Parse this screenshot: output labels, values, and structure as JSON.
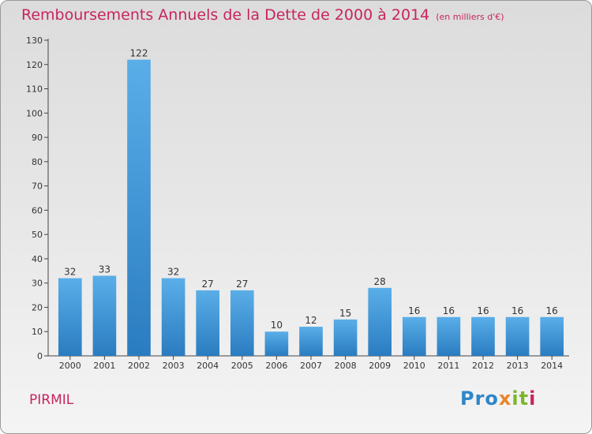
{
  "title": "Remboursements Annuels de la Dette de 2000 à 2014",
  "unit": "(en milliers d'€)",
  "town": "PIRMIL",
  "logo": {
    "p1": "Pro",
    "p2": "x",
    "p3": "it",
    "p4": "i"
  },
  "colors": {
    "title": "#c8245f",
    "bar_top": "#5aaee8",
    "bar_bottom": "#2a7cc0"
  },
  "chart_data": {
    "type": "bar",
    "title": "Remboursements Annuels de la Dette de 2000 à 2014",
    "xlabel": "",
    "ylabel": "",
    "categories": [
      "2000",
      "2001",
      "2002",
      "2003",
      "2004",
      "2005",
      "2006",
      "2007",
      "2008",
      "2009",
      "2010",
      "2011",
      "2012",
      "2013",
      "2014"
    ],
    "values": [
      32,
      33,
      122,
      32,
      27,
      27,
      10,
      12,
      15,
      28,
      16,
      16,
      16,
      16,
      16
    ],
    "ylim": [
      0,
      130
    ],
    "yticks": [
      0,
      10,
      20,
      30,
      40,
      50,
      60,
      70,
      80,
      90,
      100,
      110,
      120,
      130
    ],
    "grid": false,
    "legend": "none"
  }
}
